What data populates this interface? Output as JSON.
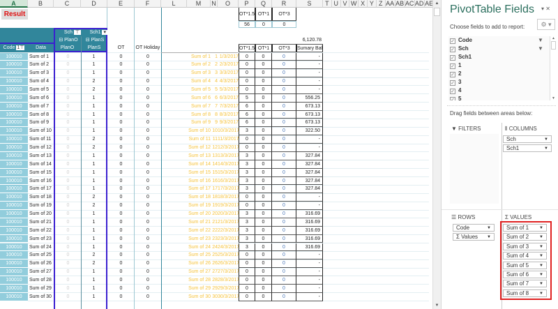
{
  "columns": [
    "A",
    "B",
    "C",
    "D",
    "E",
    "F",
    "L",
    "M",
    "N",
    "O",
    "P",
    "Q",
    "R",
    "S",
    "T",
    "U",
    "V",
    "W",
    "X",
    "Y",
    "Z",
    "AA",
    "AB",
    "AC",
    "AD",
    "AE"
  ],
  "sheet": {
    "result_label": "Result",
    "col_fields": {
      "sch": "Sch",
      "sch1": "Sch1",
      "plan_o": "PlanO",
      "plan_s": "PlanS"
    },
    "headers": {
      "code": "Code",
      "data": "Data",
      "c": "PlanO",
      "d": "PlanS",
      "e": "OT",
      "f": "OT Holiday",
      "p": "OT*1.5",
      "q": "OT*1",
      "r": "OT*3",
      "s": "Sumary Baht"
    },
    "top_summary": {
      "p_label": "OT*1.5",
      "q_label": "OT*1",
      "r_label": "OT*3",
      "p": "56",
      "q": "0",
      "r": "0"
    },
    "total_baht": "6,120.78",
    "rows": [
      {
        "code": "100010",
        "data": "Sum of 1",
        "c": "0",
        "d": "1",
        "e": "0",
        "f": "0",
        "l": "Sum of 1",
        "n": "1",
        "o": "1/3/2017",
        "p": "0",
        "q": "0",
        "r": "0",
        "s": "-"
      },
      {
        "code": "100010",
        "data": "Sum of 2",
        "c": "0",
        "d": "1",
        "e": "0",
        "f": "0",
        "l": "Sum of 2",
        "n": "2",
        "o": "2/3/2017",
        "p": "0",
        "q": "0",
        "r": "0",
        "s": "-"
      },
      {
        "code": "100010",
        "data": "Sum of 3",
        "c": "0",
        "d": "1",
        "e": "0",
        "f": "0",
        "l": "Sum of 3",
        "n": "3",
        "o": "3/3/2017",
        "p": "0",
        "q": "0",
        "r": "0",
        "s": "-"
      },
      {
        "code": "100010",
        "data": "Sum of 4",
        "c": "0",
        "d": "2",
        "e": "0",
        "f": "0",
        "l": "Sum of 4",
        "n": "4",
        "o": "4/3/2017",
        "p": "0",
        "q": "0",
        "r": "0",
        "s": "-"
      },
      {
        "code": "100010",
        "data": "Sum of 5",
        "c": "0",
        "d": "2",
        "e": "0",
        "f": "0",
        "l": "Sum of 5",
        "n": "5",
        "o": "5/3/2017",
        "p": "0",
        "q": "0",
        "r": "0",
        "s": "-"
      },
      {
        "code": "100010",
        "data": "Sum of 6",
        "c": "0",
        "d": "1",
        "e": "0",
        "f": "0",
        "l": "Sum of 6",
        "n": "6",
        "o": "6/3/2017",
        "p": "5",
        "q": "0",
        "r": "0",
        "s": "556.25"
      },
      {
        "code": "100010",
        "data": "Sum of 7",
        "c": "0",
        "d": "1",
        "e": "0",
        "f": "0",
        "l": "Sum of 7",
        "n": "7",
        "o": "7/3/2017",
        "p": "6",
        "q": "0",
        "r": "0",
        "s": "673.13"
      },
      {
        "code": "100010",
        "data": "Sum of 8",
        "c": "0",
        "d": "1",
        "e": "0",
        "f": "0",
        "l": "Sum of 8",
        "n": "8",
        "o": "8/3/2017",
        "p": "6",
        "q": "0",
        "r": "0",
        "s": "673.13"
      },
      {
        "code": "100010",
        "data": "Sum of 9",
        "c": "0",
        "d": "1",
        "e": "0",
        "f": "0",
        "l": "Sum of 9",
        "n": "9",
        "o": "9/3/2017",
        "p": "6",
        "q": "0",
        "r": "0",
        "s": "673.13"
      },
      {
        "code": "100010",
        "data": "Sum of 10",
        "c": "0",
        "d": "1",
        "e": "0",
        "f": "0",
        "l": "Sum of 10",
        "n": "10",
        "o": "10/3/2017",
        "p": "3",
        "q": "0",
        "r": "0",
        "s": "322.50"
      },
      {
        "code": "100010",
        "data": "Sum of 11",
        "c": "0",
        "d": "2",
        "e": "0",
        "f": "0",
        "l": "Sum of 11",
        "n": "11",
        "o": "11/3/2017",
        "p": "0",
        "q": "0",
        "r": "0",
        "s": "-"
      },
      {
        "code": "100010",
        "data": "Sum of 12",
        "c": "0",
        "d": "2",
        "e": "0",
        "f": "0",
        "l": "Sum of 12",
        "n": "12",
        "o": "12/3/2017",
        "p": "0",
        "q": "0",
        "r": "0",
        "s": "-"
      },
      {
        "code": "100010",
        "data": "Sum of 13",
        "c": "0",
        "d": "1",
        "e": "0",
        "f": "0",
        "l": "Sum of 13",
        "n": "13",
        "o": "13/3/2017",
        "p": "3",
        "q": "0",
        "r": "0",
        "s": "327.84"
      },
      {
        "code": "100010",
        "data": "Sum of 14",
        "c": "0",
        "d": "1",
        "e": "0",
        "f": "0",
        "l": "Sum of 14",
        "n": "14",
        "o": "14/3/2017",
        "p": "3",
        "q": "0",
        "r": "0",
        "s": "327.84"
      },
      {
        "code": "100010",
        "data": "Sum of 15",
        "c": "0",
        "d": "1",
        "e": "0",
        "f": "0",
        "l": "Sum of 15",
        "n": "15",
        "o": "15/3/2017",
        "p": "3",
        "q": "0",
        "r": "0",
        "s": "327.84"
      },
      {
        "code": "100010",
        "data": "Sum of 16",
        "c": "0",
        "d": "1",
        "e": "0",
        "f": "0",
        "l": "Sum of 16",
        "n": "16",
        "o": "16/3/2017",
        "p": "3",
        "q": "0",
        "r": "0",
        "s": "327.84"
      },
      {
        "code": "100010",
        "data": "Sum of 17",
        "c": "0",
        "d": "1",
        "e": "0",
        "f": "0",
        "l": "Sum of 17",
        "n": "17",
        "o": "17/3/2017",
        "p": "3",
        "q": "0",
        "r": "0",
        "s": "327.84"
      },
      {
        "code": "100010",
        "data": "Sum of 18",
        "c": "0",
        "d": "2",
        "e": "0",
        "f": "0",
        "l": "Sum of 18",
        "n": "18",
        "o": "18/3/2017",
        "p": "0",
        "q": "0",
        "r": "0",
        "s": "-"
      },
      {
        "code": "100010",
        "data": "Sum of 19",
        "c": "0",
        "d": "2",
        "e": "0",
        "f": "0",
        "l": "Sum of 19",
        "n": "19",
        "o": "19/3/2017",
        "p": "0",
        "q": "0",
        "r": "0",
        "s": "-"
      },
      {
        "code": "100010",
        "data": "Sum of 20",
        "c": "0",
        "d": "1",
        "e": "0",
        "f": "0",
        "l": "Sum of 20",
        "n": "20",
        "o": "20/3/2017",
        "p": "3",
        "q": "0",
        "r": "0",
        "s": "316.69"
      },
      {
        "code": "100010",
        "data": "Sum of 21",
        "c": "0",
        "d": "1",
        "e": "0",
        "f": "0",
        "l": "Sum of 21",
        "n": "21",
        "o": "21/3/2017",
        "p": "3",
        "q": "0",
        "r": "0",
        "s": "316.69"
      },
      {
        "code": "100010",
        "data": "Sum of 22",
        "c": "0",
        "d": "1",
        "e": "0",
        "f": "0",
        "l": "Sum of 22",
        "n": "22",
        "o": "22/3/2017",
        "p": "3",
        "q": "0",
        "r": "0",
        "s": "316.69"
      },
      {
        "code": "100010",
        "data": "Sum of 23",
        "c": "0",
        "d": "1",
        "e": "0",
        "f": "0",
        "l": "Sum of 23",
        "n": "23",
        "o": "23/3/2017",
        "p": "3",
        "q": "0",
        "r": "0",
        "s": "316.69"
      },
      {
        "code": "100010",
        "data": "Sum of 24",
        "c": "0",
        "d": "1",
        "e": "0",
        "f": "0",
        "l": "Sum of 24",
        "n": "24",
        "o": "24/3/2017",
        "p": "3",
        "q": "0",
        "r": "0",
        "s": "316.69"
      },
      {
        "code": "100010",
        "data": "Sum of 25",
        "c": "0",
        "d": "2",
        "e": "0",
        "f": "0",
        "l": "Sum of 25",
        "n": "25",
        "o": "25/3/2017",
        "p": "0",
        "q": "0",
        "r": "0",
        "s": "-"
      },
      {
        "code": "100010",
        "data": "Sum of 26",
        "c": "0",
        "d": "2",
        "e": "0",
        "f": "0",
        "l": "Sum of 26",
        "n": "26",
        "o": "26/3/2017",
        "p": "0",
        "q": "0",
        "r": "0",
        "s": "-"
      },
      {
        "code": "100010",
        "data": "Sum of 27",
        "c": "0",
        "d": "1",
        "e": "0",
        "f": "0",
        "l": "Sum of 27",
        "n": "27",
        "o": "27/3/2017",
        "p": "0",
        "q": "0",
        "r": "0",
        "s": "-"
      },
      {
        "code": "100010",
        "data": "Sum of 28",
        "c": "0",
        "d": "1",
        "e": "0",
        "f": "0",
        "l": "Sum of 28",
        "n": "28",
        "o": "28/3/2017",
        "p": "0",
        "q": "0",
        "r": "0",
        "s": "-"
      },
      {
        "code": "100010",
        "data": "Sum of 29",
        "c": "0",
        "d": "1",
        "e": "0",
        "f": "0",
        "l": "Sum of 29",
        "n": "29",
        "o": "29/3/2017",
        "p": "0",
        "q": "0",
        "r": "0",
        "s": "-"
      },
      {
        "code": "100010",
        "data": "Sum of 30",
        "c": "0",
        "d": "1",
        "e": "0",
        "f": "0",
        "l": "Sum of 30",
        "n": "30",
        "o": "30/3/2017",
        "p": "0",
        "q": "0",
        "r": "0",
        "s": "-"
      }
    ]
  },
  "panel": {
    "title": "PivotTable Fields",
    "choose_label": "Choose fields to add to report:",
    "fields": [
      "Code",
      "Sch",
      "Sch1",
      "1",
      "2",
      "3",
      "4",
      "5"
    ],
    "drag_label": "Drag fields between areas below:",
    "filters_label": "FILTERS",
    "columns_label": "COLUMNS",
    "columns_items": [
      "Sch",
      "Sch1"
    ],
    "rows_label": "ROWS",
    "rows_items": [
      "Code",
      "Σ Values"
    ],
    "values_label": "VALUES",
    "values_items": [
      "Sum of 1",
      "Sum of 2",
      "Sum of 3",
      "Sum of 4",
      "Sum of 5",
      "Sum of 6",
      "Sum of 7",
      "Sum of 8"
    ]
  },
  "colors": {
    "header_teal": "#31869b",
    "code_cell": "#92cddc",
    "date_text": "#f5c23a",
    "highlight_red": "#e02020",
    "pivot_border": "#3a1fd0"
  }
}
